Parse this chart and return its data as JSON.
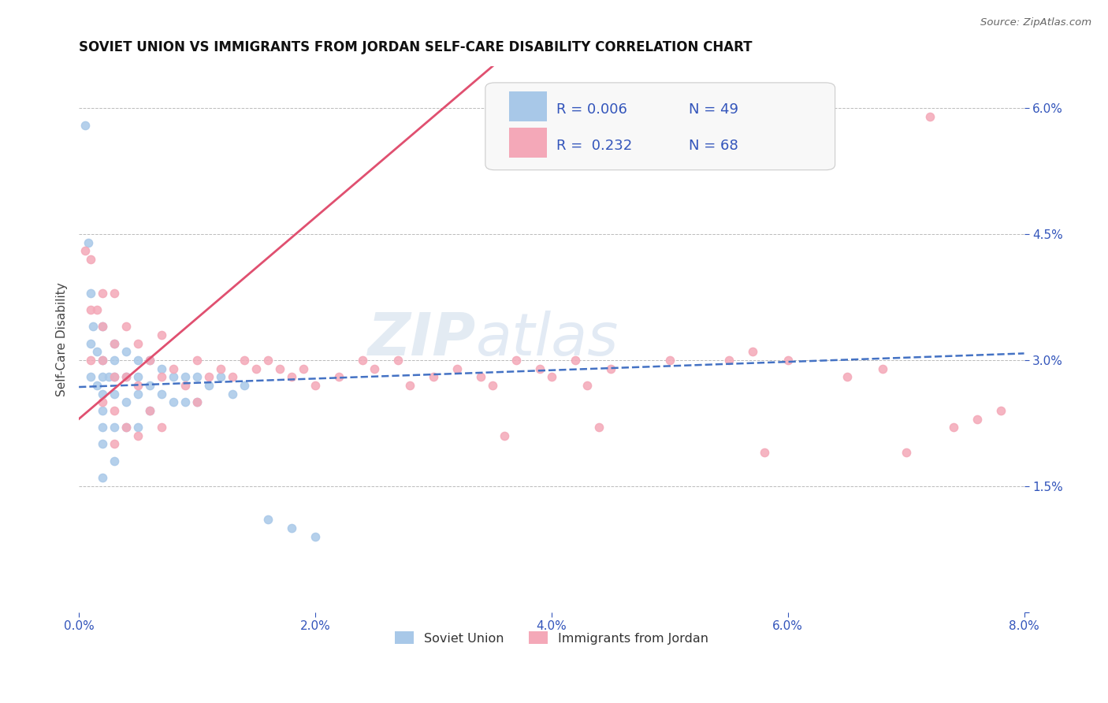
{
  "title": "SOVIET UNION VS IMMIGRANTS FROM JORDAN SELF-CARE DISABILITY CORRELATION CHART",
  "source_text": "Source: ZipAtlas.com",
  "ylabel": "Self-Care Disability",
  "xlim": [
    0.0,
    0.08
  ],
  "ylim": [
    0.0,
    0.065
  ],
  "right_yticks": [
    0.0,
    0.015,
    0.03,
    0.045,
    0.06
  ],
  "right_yticklabels": [
    "",
    "1.5%",
    "3.0%",
    "4.5%",
    "6.0%"
  ],
  "xticklabels": [
    "0.0%",
    "2.0%",
    "4.0%",
    "6.0%",
    "8.0%"
  ],
  "xticks": [
    0.0,
    0.02,
    0.04,
    0.06,
    0.08
  ],
  "color_soviet": "#a8c8e8",
  "color_jordan": "#f4a8b8",
  "line_soviet_color": "#4472c4",
  "line_jordan_color": "#e05070",
  "legend_r_soviet": "0.006",
  "legend_n_soviet": "49",
  "legend_r_jordan": "0.232",
  "legend_n_jordan": "68",
  "legend_label_soviet": "Soviet Union",
  "legend_label_jordan": "Immigrants from Jordan",
  "watermark": "ZIPatlas",
  "blue_text_color": "#3355bb",
  "soviet_x": [
    0.0005,
    0.0008,
    0.001,
    0.001,
    0.001,
    0.0012,
    0.0015,
    0.0015,
    0.002,
    0.002,
    0.002,
    0.002,
    0.002,
    0.002,
    0.002,
    0.002,
    0.0025,
    0.003,
    0.003,
    0.003,
    0.003,
    0.003,
    0.003,
    0.004,
    0.004,
    0.004,
    0.004,
    0.005,
    0.005,
    0.005,
    0.005,
    0.006,
    0.006,
    0.006,
    0.007,
    0.007,
    0.008,
    0.008,
    0.009,
    0.009,
    0.01,
    0.01,
    0.011,
    0.012,
    0.013,
    0.014,
    0.016,
    0.018,
    0.02
  ],
  "soviet_y": [
    0.058,
    0.044,
    0.038,
    0.032,
    0.028,
    0.034,
    0.031,
    0.027,
    0.034,
    0.03,
    0.028,
    0.026,
    0.024,
    0.022,
    0.02,
    0.016,
    0.028,
    0.032,
    0.03,
    0.028,
    0.026,
    0.022,
    0.018,
    0.031,
    0.028,
    0.025,
    0.022,
    0.03,
    0.028,
    0.026,
    0.022,
    0.03,
    0.027,
    0.024,
    0.029,
    0.026,
    0.028,
    0.025,
    0.028,
    0.025,
    0.028,
    0.025,
    0.027,
    0.028,
    0.026,
    0.027,
    0.011,
    0.01,
    0.009
  ],
  "jordan_x": [
    0.0005,
    0.001,
    0.001,
    0.001,
    0.0015,
    0.002,
    0.002,
    0.002,
    0.002,
    0.003,
    0.003,
    0.003,
    0.003,
    0.003,
    0.004,
    0.004,
    0.004,
    0.005,
    0.005,
    0.005,
    0.006,
    0.006,
    0.007,
    0.007,
    0.007,
    0.008,
    0.009,
    0.01,
    0.01,
    0.011,
    0.012,
    0.013,
    0.014,
    0.015,
    0.016,
    0.017,
    0.018,
    0.019,
    0.02,
    0.022,
    0.024,
    0.025,
    0.027,
    0.028,
    0.03,
    0.032,
    0.034,
    0.035,
    0.037,
    0.039,
    0.04,
    0.042,
    0.043,
    0.045,
    0.05,
    0.055,
    0.057,
    0.06,
    0.065,
    0.068,
    0.07,
    0.072,
    0.074,
    0.076,
    0.078,
    0.058,
    0.036,
    0.044
  ],
  "jordan_y": [
    0.043,
    0.042,
    0.036,
    0.03,
    0.036,
    0.038,
    0.034,
    0.03,
    0.025,
    0.038,
    0.032,
    0.028,
    0.024,
    0.02,
    0.034,
    0.028,
    0.022,
    0.032,
    0.027,
    0.021,
    0.03,
    0.024,
    0.033,
    0.028,
    0.022,
    0.029,
    0.027,
    0.03,
    0.025,
    0.028,
    0.029,
    0.028,
    0.03,
    0.029,
    0.03,
    0.029,
    0.028,
    0.029,
    0.027,
    0.028,
    0.03,
    0.029,
    0.03,
    0.027,
    0.028,
    0.029,
    0.028,
    0.027,
    0.03,
    0.029,
    0.028,
    0.03,
    0.027,
    0.029,
    0.03,
    0.03,
    0.031,
    0.03,
    0.028,
    0.029,
    0.019,
    0.059,
    0.022,
    0.023,
    0.024,
    0.019,
    0.021,
    0.022
  ]
}
